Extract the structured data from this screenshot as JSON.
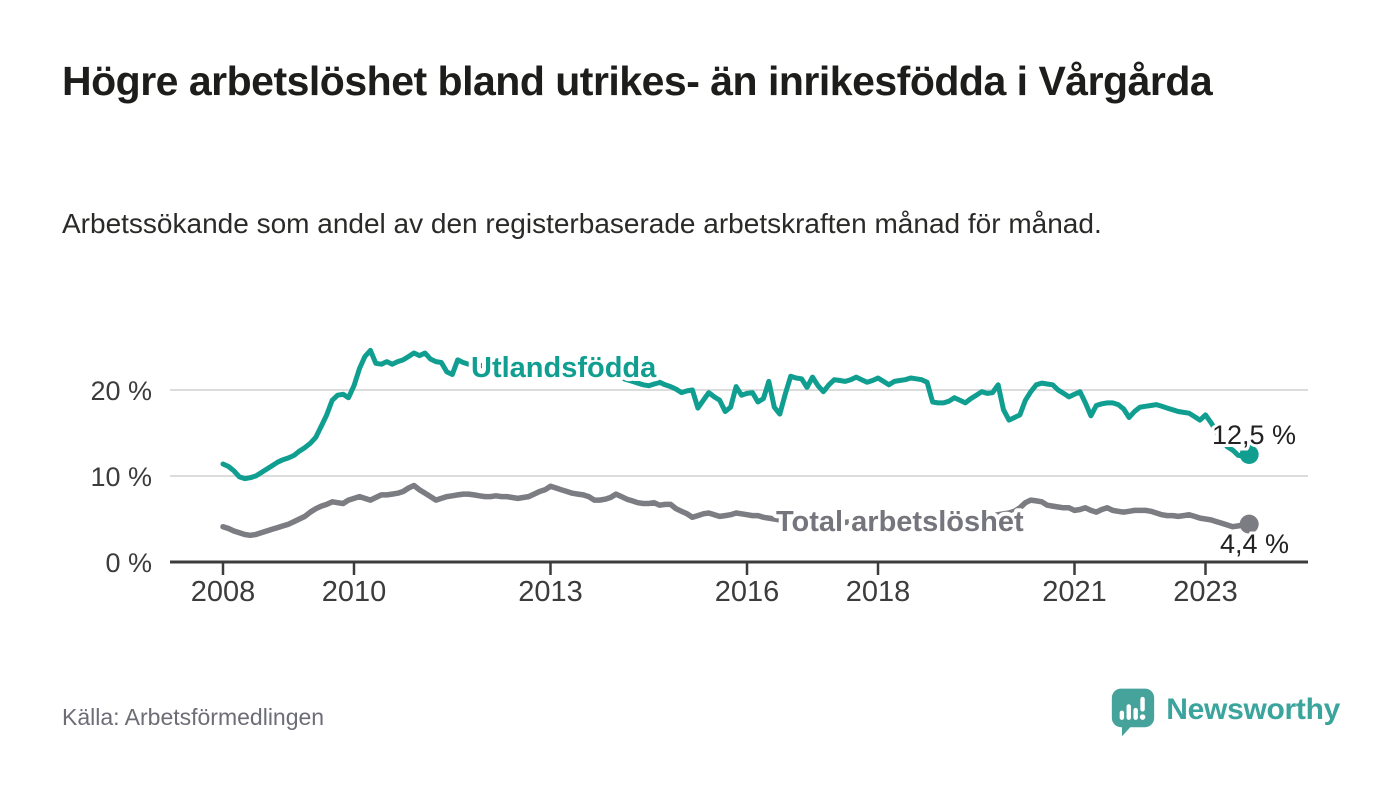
{
  "header": {
    "title": "Högre arbetslöshet bland utrikes- än inrikesfödda i Vårgårda",
    "subtitle": "Arbetssökande som andel av den registerbaserade arbetskraften månad för månad."
  },
  "footer": {
    "source": "Källa: Arbetsförmedlingen",
    "brand_name": "Newsworthy",
    "brand_icon": "newsworthy-speech-bubble-bar-chart-icon"
  },
  "colors": {
    "series_foreign_born": "#0f9e90",
    "series_total": "#7c7c83",
    "total_label_gray": "#75757d",
    "axis": "#3c3c3c",
    "grid": "#dcdcdc",
    "value_label": "#222222",
    "muted_text": "#6d6d76",
    "brand_teal": "#3ba49d"
  },
  "chart_data": {
    "type": "line",
    "unit": "%",
    "x_start": "2008-01",
    "x_end": "2023-09",
    "x_frequency": "monthly",
    "x_tick_years": [
      2008,
      2010,
      2013,
      2016,
      2018,
      2021,
      2023
    ],
    "x_tick_labels": [
      "2008",
      "2010",
      "2013",
      "2016",
      "2018",
      "2021",
      "2023"
    ],
    "y_tick_values": [
      0,
      10,
      20
    ],
    "y_tick_labels": [
      "0 %",
      "10 %",
      "20 %"
    ],
    "ylim": [
      0,
      27
    ],
    "grid": "horizontal-only",
    "legend": "inline-series-labels",
    "series": [
      {
        "name": "Utlandsfödda",
        "color": "#0f9e90",
        "end_value_label": "12,5 %",
        "last_value": 12.5,
        "values": [
          11.4,
          11.1,
          10.6,
          9.9,
          9.7,
          9.8,
          10.0,
          10.4,
          10.8,
          11.2,
          11.6,
          11.9,
          12.1,
          12.4,
          12.9,
          13.3,
          13.8,
          14.5,
          15.8,
          17.1,
          18.8,
          19.4,
          19.5,
          19.1,
          20.5,
          22.5,
          23.9,
          24.6,
          23.1,
          23.0,
          23.3,
          23.0,
          23.3,
          23.5,
          23.9,
          24.3,
          24.0,
          24.3,
          23.6,
          23.3,
          23.2,
          22.1,
          21.8,
          23.5,
          23.2,
          23.0,
          22.9,
          22.8,
          22.9,
          23.1,
          23.3,
          23.0,
          22.8,
          22.6,
          22.7,
          22.9,
          22.7,
          22.5,
          22.4,
          22.5,
          22.6,
          22.4,
          22.2,
          22.3,
          22.1,
          21.9,
          22.0,
          22.2,
          22.0,
          21.8,
          21.7,
          21.6,
          21.5,
          21.4,
          21.2,
          21.0,
          20.8,
          20.6,
          20.5,
          20.7,
          20.9,
          20.6,
          20.4,
          20.1,
          19.7,
          19.9,
          20.0,
          17.9,
          18.8,
          19.7,
          19.2,
          18.8,
          17.5,
          18.0,
          20.4,
          19.4,
          19.6,
          19.7,
          18.6,
          19.0,
          21.0,
          18.0,
          17.2,
          19.5,
          21.6,
          21.4,
          21.3,
          20.3,
          21.5,
          20.5,
          19.8,
          20.6,
          21.2,
          21.1,
          21.0,
          21.2,
          21.5,
          21.2,
          20.9,
          21.1,
          21.4,
          21.0,
          20.6,
          21.0,
          21.1,
          21.2,
          21.4,
          21.3,
          21.2,
          20.9,
          18.6,
          18.5,
          18.5,
          18.7,
          19.1,
          18.8,
          18.5,
          19.0,
          19.4,
          19.8,
          19.6,
          19.7,
          20.6,
          17.7,
          16.5,
          16.8,
          17.1,
          18.8,
          19.8,
          20.6,
          20.8,
          20.7,
          20.6,
          20.0,
          19.6,
          19.2,
          19.5,
          19.8,
          18.5,
          17.0,
          18.2,
          18.4,
          18.5,
          18.5,
          18.3,
          17.8,
          16.8,
          17.5,
          18.0,
          18.1,
          18.2,
          18.3,
          18.1,
          17.9,
          17.7,
          17.5,
          17.4,
          17.3,
          16.9,
          16.5,
          17.1,
          16.2,
          15.2,
          14.2,
          13.4,
          13.0,
          12.4,
          12.3,
          12.5
        ]
      },
      {
        "name": "Total arbetslöshet",
        "color": "#7c7c83",
        "end_value_label": "4,4 %",
        "last_value": 4.4,
        "values": [
          4.1,
          3.9,
          3.6,
          3.4,
          3.2,
          3.1,
          3.2,
          3.4,
          3.6,
          3.8,
          4.0,
          4.2,
          4.4,
          4.7,
          5.0,
          5.3,
          5.8,
          6.2,
          6.5,
          6.7,
          7.0,
          6.9,
          6.8,
          7.2,
          7.4,
          7.6,
          7.4,
          7.2,
          7.5,
          7.8,
          7.8,
          7.9,
          8.0,
          8.2,
          8.6,
          8.9,
          8.4,
          8.0,
          7.6,
          7.2,
          7.4,
          7.6,
          7.7,
          7.8,
          7.9,
          7.9,
          7.8,
          7.7,
          7.6,
          7.6,
          7.7,
          7.6,
          7.6,
          7.5,
          7.4,
          7.5,
          7.6,
          7.9,
          8.2,
          8.4,
          8.8,
          8.6,
          8.4,
          8.2,
          8.0,
          7.9,
          7.8,
          7.6,
          7.2,
          7.2,
          7.3,
          7.5,
          7.9,
          7.6,
          7.3,
          7.1,
          6.9,
          6.8,
          6.8,
          6.9,
          6.6,
          6.7,
          6.7,
          6.2,
          5.9,
          5.6,
          5.2,
          5.4,
          5.6,
          5.7,
          5.5,
          5.3,
          5.4,
          5.5,
          5.7,
          5.6,
          5.5,
          5.4,
          5.4,
          5.2,
          5.1,
          5.0,
          4.9,
          4.9,
          5.0,
          5.0,
          4.9,
          4.9,
          4.9,
          4.8,
          4.8,
          4.7,
          4.7,
          4.6,
          4.6,
          4.7,
          4.7,
          4.8,
          4.8,
          4.9,
          4.9,
          4.8,
          4.8,
          4.7,
          4.7,
          4.6,
          4.6,
          4.7,
          4.7,
          4.8,
          4.9,
          5.0,
          5.0,
          5.0,
          5.1,
          5.1,
          5.2,
          5.2,
          5.3,
          5.3,
          5.4,
          5.4,
          5.5,
          5.6,
          5.7,
          5.9,
          6.3,
          6.9,
          7.2,
          7.1,
          7.0,
          6.6,
          6.5,
          6.4,
          6.3,
          6.3,
          6.0,
          6.1,
          6.3,
          6.0,
          5.8,
          6.1,
          6.3,
          6.0,
          5.9,
          5.8,
          5.9,
          6.0,
          6.0,
          6.0,
          5.9,
          5.7,
          5.5,
          5.4,
          5.4,
          5.3,
          5.4,
          5.5,
          5.3,
          5.1,
          5.0,
          4.9,
          4.7,
          4.5,
          4.3,
          4.1,
          4.2,
          4.3,
          4.4
        ]
      }
    ]
  }
}
